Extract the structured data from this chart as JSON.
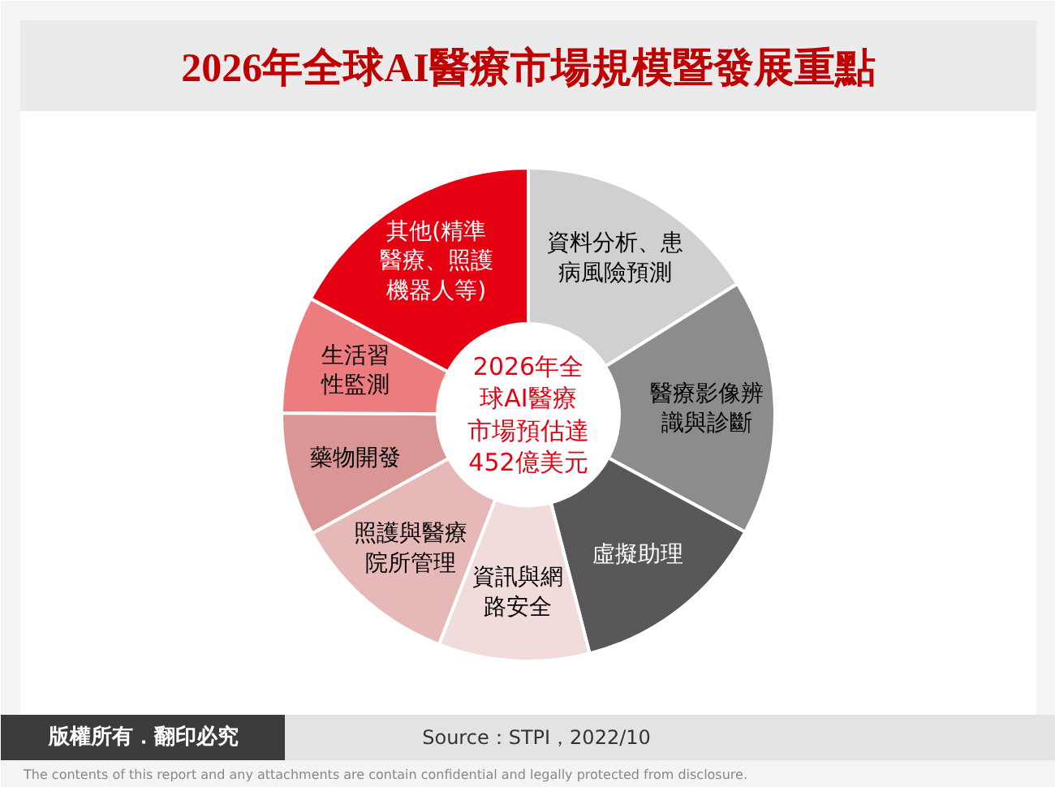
{
  "chart_data": {
    "type": "donut",
    "title": "2026年全球AI醫療市場規模暨發展重點",
    "categories": [
      "資料分析、患病風險預測",
      "醫療影像辨識與診斷",
      "虛擬助理",
      "資訊與網路安全",
      "照護與醫療院所管理",
      "藥物開發",
      "生活習性監測",
      "其他(精準醫療、照護機器人等)"
    ],
    "values": [
      16.1,
      16.8,
      13.1,
      9.9,
      11.1,
      8.1,
      7.7,
      17.2
    ],
    "colors": [
      "#d0d0d0",
      "#8c8c8c",
      "#595758",
      "#f2dcdb",
      "#e6b8b7",
      "#d99694",
      "#ec7c7e",
      "#e50012"
    ],
    "annotations": [
      "2026年全球AI醫療市場預估達452億美元",
      "版權所有．翻印必究",
      "Source：STPI，2022/10",
      "The contents of this report and any attachments are contain confidential and legally protected from disclosure."
    ]
  }
}
